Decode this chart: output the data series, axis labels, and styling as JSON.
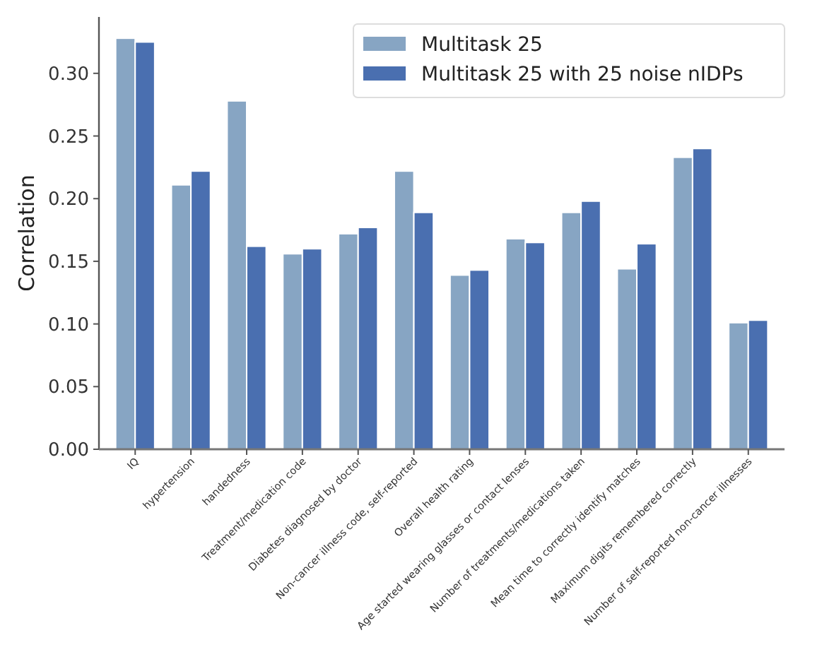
{
  "chart_data": {
    "type": "bar",
    "ylabel": "Correlation",
    "categories": [
      "IQ",
      "hypertension",
      "handedness",
      "Treatment/medication code",
      "Diabetes diagnosed by doctor",
      "Non-cancer illness code, self-reported",
      "Overall health rating",
      "Age started wearing glasses or contact lenses",
      "Number of treatments/medications taken",
      "Mean time to correctly identify matches",
      "Maximum digits remembered correctly",
      "Number of self-reported non-cancer illnesses"
    ],
    "series": [
      {
        "name": "Multitask 25",
        "color": "#87a5c3",
        "values": [
          0.328,
          0.211,
          0.278,
          0.156,
          0.172,
          0.222,
          0.139,
          0.168,
          0.189,
          0.144,
          0.233,
          0.101
        ]
      },
      {
        "name": "Multitask 25 with 25 noise nIDPs",
        "color": "#4a6fb0",
        "values": [
          0.325,
          0.222,
          0.162,
          0.16,
          0.177,
          0.189,
          0.143,
          0.165,
          0.198,
          0.164,
          0.24,
          0.103
        ]
      }
    ],
    "ylim": [
      0,
      0.345
    ],
    "yticks": [
      {
        "value": 0,
        "label": "0.00"
      },
      {
        "value": 0.05,
        "label": "0.05"
      },
      {
        "value": 0.1,
        "label": "0.10"
      },
      {
        "value": 0.15,
        "label": "0.15"
      },
      {
        "value": 0.2,
        "label": "0.20"
      },
      {
        "value": 0.25,
        "label": "0.25"
      },
      {
        "value": 0.3,
        "label": "0.30"
      }
    ],
    "grid": false,
    "legend": "top right"
  }
}
